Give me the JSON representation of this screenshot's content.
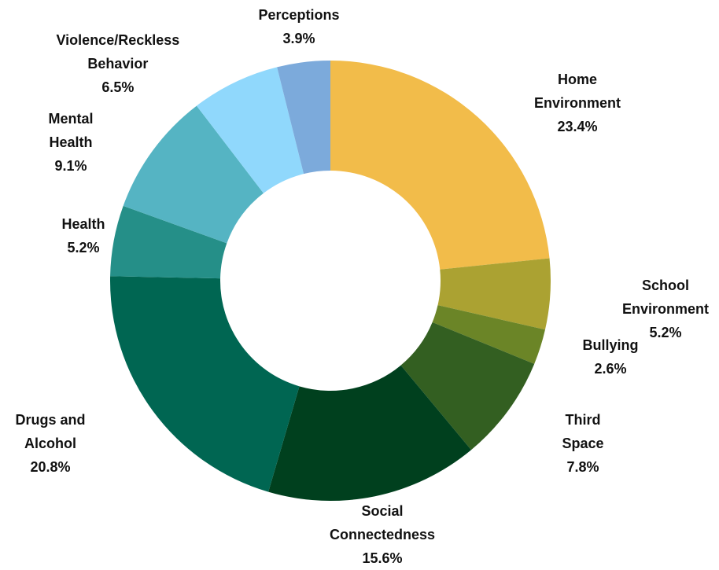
{
  "chart_data": {
    "type": "pie",
    "donut": true,
    "title": "",
    "legend": "none",
    "slices": [
      {
        "name": "Home Environment",
        "lines": [
          "Home",
          "Environment"
        ],
        "value": 23.4,
        "value_label": "23.4%",
        "color": "#F2BC4A"
      },
      {
        "name": "School Environment",
        "lines": [
          "School",
          "Environment"
        ],
        "value": 5.2,
        "value_label": "5.2%",
        "color": "#ABA232"
      },
      {
        "name": "Bullying",
        "lines": [
          "Bullying"
        ],
        "value": 2.6,
        "value_label": "2.6%",
        "color": "#6B8527"
      },
      {
        "name": "Third Space",
        "lines": [
          "Third",
          "Space"
        ],
        "value": 7.8,
        "value_label": "7.8%",
        "color": "#335F21"
      },
      {
        "name": "Social Connectedness",
        "lines": [
          "Social",
          "Connectedness"
        ],
        "value": 15.6,
        "value_label": "15.6%",
        "color": "#00401E"
      },
      {
        "name": "Drugs and Alcohol",
        "lines": [
          "Drugs and",
          "Alcohol"
        ],
        "value": 20.8,
        "value_label": "20.8%",
        "color": "#006652"
      },
      {
        "name": "Health",
        "lines": [
          "Health"
        ],
        "value": 5.2,
        "value_label": "5.2%",
        "color": "#258F88"
      },
      {
        "name": "Mental Health",
        "lines": [
          "Mental",
          "Health"
        ],
        "value": 9.1,
        "value_label": "9.1%",
        "color": "#55B4C3"
      },
      {
        "name": "Violence/Reckless Behavior",
        "lines": [
          "Violence/Reckless",
          "Behavior"
        ],
        "value": 6.5,
        "value_label": "6.5%",
        "color": "#90D8FC"
      },
      {
        "name": "Perceptions",
        "lines": [
          "Perceptions"
        ],
        "value": 3.9,
        "value_label": "3.9%",
        "color": "#7CAADB"
      }
    ]
  }
}
